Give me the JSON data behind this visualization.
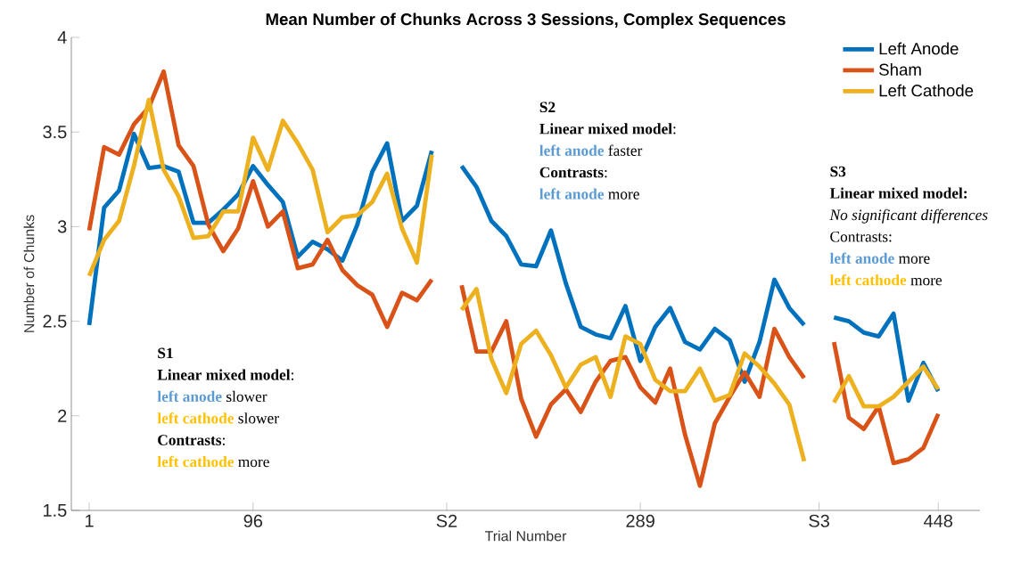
{
  "chart_data": {
    "type": "line",
    "title": "Mean Number of Chunks Across 3 Sessions, Complex Sequences",
    "xlabel": "Trial Number",
    "ylabel": "Number of Chunks",
    "ylim": [
      1.5,
      4
    ],
    "yticks": [
      {
        "value": 1.5,
        "label": "1.5"
      },
      2,
      {
        "value": 2.5,
        "label": "2.5"
      },
      3,
      {
        "value": 3.5,
        "label": "3.5"
      },
      4
    ],
    "categories": [
      "1",
      null,
      null,
      null,
      null,
      null,
      null,
      null,
      null,
      null,
      null,
      "96",
      null,
      null,
      null,
      null,
      null,
      null,
      null,
      null,
      null,
      null,
      null,
      null,
      "S2",
      null,
      null,
      null,
      null,
      null,
      null,
      null,
      null,
      null,
      null,
      null,
      null,
      "289",
      null,
      null,
      null,
      null,
      null,
      null,
      null,
      null,
      null,
      null,
      null,
      "S3",
      null,
      null,
      null,
      null,
      null,
      null,
      null,
      "448"
    ],
    "series": [
      {
        "name": "Left Anode",
        "color": "#0072bd",
        "values": [
          2.48,
          3.1,
          3.19,
          3.49,
          3.31,
          3.32,
          3.29,
          3.02,
          3.02,
          3.09,
          3.17,
          3.32,
          3.22,
          3.13,
          2.84,
          2.92,
          2.88,
          2.82,
          3.01,
          3.29,
          3.44,
          3.03,
          3.11,
          3.4,
          null,
          3.32,
          3.21,
          3.03,
          2.95,
          2.8,
          2.79,
          2.98,
          2.7,
          2.47,
          2.43,
          2.41,
          2.58,
          2.29,
          2.47,
          2.57,
          2.39,
          2.35,
          2.46,
          2.4,
          2.18,
          2.39,
          2.72,
          2.57,
          2.48,
          null,
          2.52,
          2.5,
          2.44,
          2.42,
          2.54,
          2.08,
          2.28,
          2.13
        ]
      },
      {
        "name": "Sham",
        "color": "#d95319",
        "values": [
          2.98,
          3.42,
          3.38,
          3.54,
          3.63,
          3.82,
          3.43,
          3.32,
          3.01,
          2.87,
          2.99,
          3.24,
          3.0,
          3.08,
          2.78,
          2.8,
          2.93,
          2.77,
          2.69,
          2.64,
          2.47,
          2.65,
          2.61,
          2.72,
          null,
          2.69,
          2.34,
          2.34,
          2.5,
          2.09,
          1.89,
          2.06,
          2.14,
          2.02,
          2.18,
          2.29,
          2.31,
          2.15,
          2.07,
          2.25,
          1.9,
          1.63,
          1.96,
          2.1,
          2.23,
          2.1,
          2.46,
          2.31,
          2.2,
          null,
          2.39,
          1.99,
          1.93,
          2.05,
          1.75,
          1.77,
          1.83,
          2.01
        ]
      },
      {
        "name": "Left Cathode",
        "color": "#edb120",
        "values": [
          2.74,
          2.93,
          3.03,
          3.32,
          3.67,
          3.3,
          3.16,
          2.94,
          2.95,
          3.08,
          3.08,
          3.47,
          3.3,
          3.56,
          3.44,
          3.3,
          2.97,
          3.05,
          3.06,
          3.13,
          3.28,
          2.99,
          2.81,
          3.38,
          null,
          2.56,
          2.67,
          2.3,
          2.12,
          2.38,
          2.45,
          2.32,
          2.15,
          2.27,
          2.31,
          2.1,
          2.42,
          2.38,
          2.19,
          2.13,
          2.13,
          2.25,
          2.08,
          2.11,
          2.33,
          2.26,
          2.17,
          2.06,
          1.76,
          null,
          2.07,
          2.21,
          2.05,
          2.05,
          2.1,
          2.18,
          2.26,
          2.14
        ]
      }
    ],
    "legend": "top right",
    "annotations": [
      "S1",
      "**Linear mixed model**:",
      "left anode",
      "slower",
      "left cathode",
      "slower",
      "**Contrasts**:",
      "left cathode",
      "more",
      "S2",
      "**Linear mixed model**:",
      "left anode",
      "faster",
      "**Contrasts**:",
      "left anode",
      "more",
      "S3",
      "Linear mixed model:",
      "No significant differences",
      "Contrasts:",
      "left anode",
      "more",
      "left cathode",
      "more"
    ]
  }
}
